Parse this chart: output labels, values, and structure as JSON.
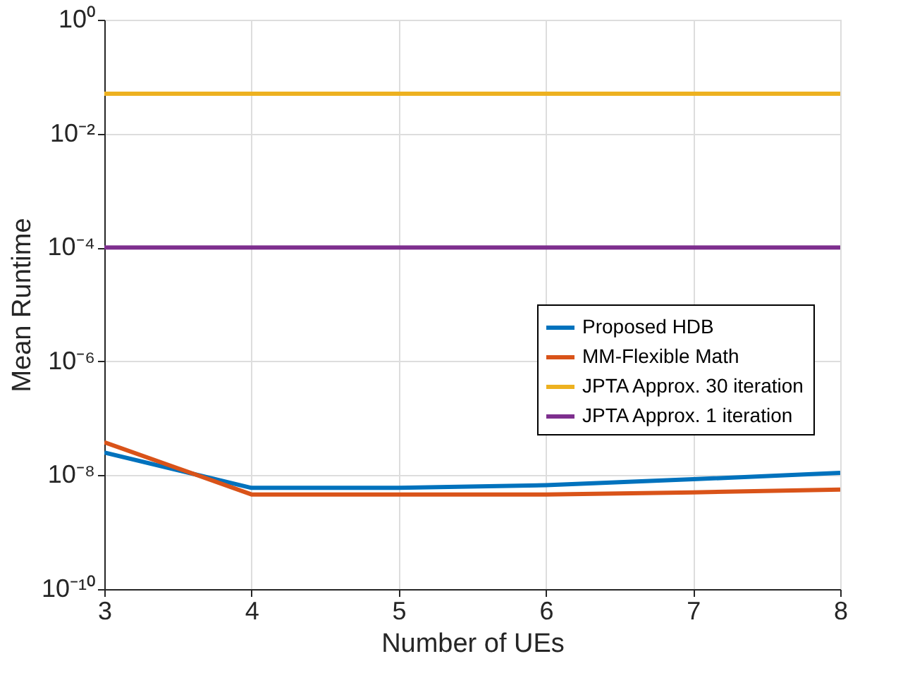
{
  "chart_data": {
    "type": "line",
    "xlabel": "Number of UEs",
    "ylabel": "Mean Runtime",
    "x": [
      3,
      4,
      5,
      6,
      7,
      8
    ],
    "series": [
      {
        "name": "Proposed HDB",
        "color": "#0072bd",
        "values": [
          2.5e-08,
          6e-09,
          6e-09,
          6.7e-09,
          8.5e-09,
          1.1e-08
        ]
      },
      {
        "name": "MM-Flexible Math",
        "color": "#d95319",
        "values": [
          3.8e-08,
          4.6e-09,
          4.6e-09,
          4.6e-09,
          5e-09,
          5.6e-09
        ]
      },
      {
        "name": "JPTA Approx. 30 iteration",
        "color": "#edb120",
        "values": [
          0.05,
          0.05,
          0.05,
          0.05,
          0.05,
          0.05
        ]
      },
      {
        "name": "JPTA Approx. 1 iteration",
        "color": "#7e2f8e",
        "values": [
          0.0001,
          0.0001,
          0.0001,
          0.0001,
          0.0001,
          0.0001
        ]
      }
    ],
    "log": "y",
    "xlim": [
      3,
      8
    ],
    "xticks": [
      3,
      4,
      5,
      6,
      7,
      8
    ],
    "ylim": [
      1e-10,
      1
    ],
    "yticks": [
      {
        "value": 1e-10,
        "label": "10⁻¹⁰"
      },
      {
        "value": 1e-08,
        "label": "10⁻⁸"
      },
      {
        "value": 1e-06,
        "label": "10⁻⁶"
      },
      {
        "value": 0.0001,
        "label": "10⁻⁴"
      },
      {
        "value": 0.01,
        "label": "10⁻²"
      },
      {
        "value": 1,
        "label": "10⁰"
      }
    ],
    "grid": true,
    "legend": "right",
    "line_style": "solid",
    "marker": "none"
  }
}
